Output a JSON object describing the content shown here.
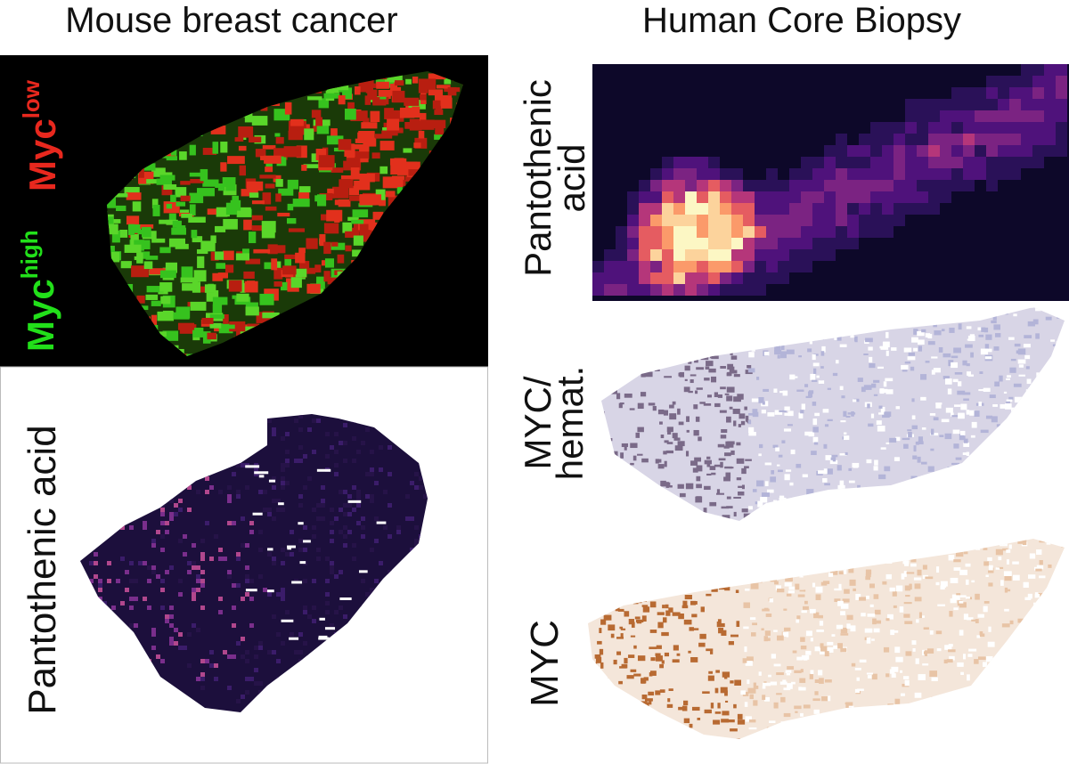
{
  "left": {
    "title": "Mouse breast cancer",
    "myc_low": {
      "base": "Myc",
      "sup": "low"
    },
    "myc_high": {
      "base": "Myc",
      "sup": "high"
    },
    "lower_label": "Pantothenic acid"
  },
  "right": {
    "title": "Human Core Biopsy",
    "top_label": [
      "Pantothenic",
      "acid"
    ],
    "middle_label": [
      "MYC/",
      "hemat."
    ],
    "bottom_label": "MYC"
  }
}
